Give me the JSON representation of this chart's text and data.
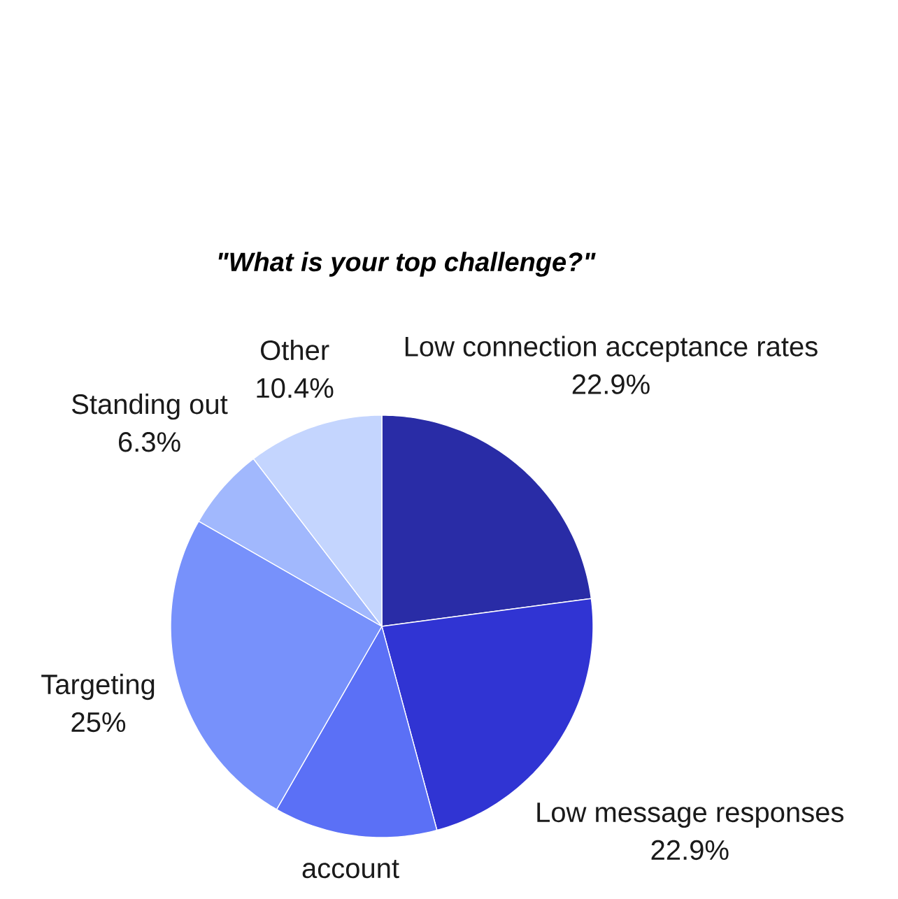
{
  "chart_data": {
    "type": "pie",
    "title": "\"What is your top challenge?\"",
    "categories": [
      "Low connection acceptance rates",
      "Low message responses",
      "account",
      "Targeting",
      "Standing out",
      "Other"
    ],
    "values": [
      22.9,
      22.9,
      12.5,
      25,
      6.3,
      10.4
    ],
    "colors": [
      "#292ca6",
      "#3034d3",
      "#5b70f6",
      "#7791fb",
      "#a1b8fd",
      "#c4d5fe"
    ],
    "value_labels": [
      "22.9%",
      "22.9%",
      null,
      "25%",
      "6.3%",
      "10.4%"
    ]
  }
}
